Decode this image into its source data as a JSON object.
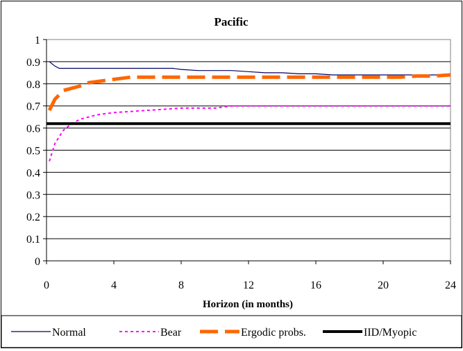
{
  "chart_data": {
    "type": "line",
    "title": "Pacific",
    "xlabel": "Horizon (in months)",
    "ylabel": "",
    "xlim": [
      0,
      24
    ],
    "ylim": [
      0,
      1
    ],
    "x_ticks": [
      "0",
      "4",
      "8",
      "12",
      "16",
      "20",
      "24"
    ],
    "y_ticks": [
      "0",
      "0.1",
      "0.2",
      "0.3",
      "0.4",
      "0.5",
      "0.6",
      "0.7",
      "0.8",
      "0.9",
      "1"
    ],
    "grid": "horizontal",
    "legend_position": "bottom",
    "series": [
      {
        "name": "Normal",
        "color": "#000066",
        "style": "solid-thin",
        "x": [
          0.17,
          0.5,
          0.75,
          1,
          1.5,
          2,
          3,
          4,
          5,
          6,
          7,
          7.5,
          8,
          9,
          10,
          11,
          12,
          13,
          14,
          15,
          16,
          17,
          18,
          19,
          20,
          21,
          22,
          23,
          24
        ],
        "y": [
          0.9,
          0.88,
          0.87,
          0.87,
          0.87,
          0.87,
          0.87,
          0.87,
          0.87,
          0.87,
          0.87,
          0.87,
          0.865,
          0.86,
          0.86,
          0.86,
          0.855,
          0.85,
          0.85,
          0.845,
          0.845,
          0.84,
          0.84,
          0.84,
          0.84,
          0.84,
          0.84,
          0.84,
          0.84
        ]
      },
      {
        "name": "Bear",
        "color": "#ff00ff",
        "style": "dotted",
        "x": [
          0.17,
          0.5,
          1,
          1.5,
          2,
          3,
          4,
          5,
          6,
          7,
          8,
          9,
          10,
          11,
          12,
          13,
          14,
          15,
          16,
          17,
          18,
          19,
          20,
          21,
          22,
          23,
          24
        ],
        "y": [
          0.45,
          0.53,
          0.59,
          0.62,
          0.64,
          0.66,
          0.67,
          0.675,
          0.68,
          0.685,
          0.69,
          0.69,
          0.69,
          0.7,
          0.7,
          0.7,
          0.7,
          0.7,
          0.7,
          0.7,
          0.7,
          0.7,
          0.7,
          0.7,
          0.7,
          0.7,
          0.7
        ]
      },
      {
        "name": "Ergodic probs.",
        "color": "#ff6600",
        "style": "dashed-thick",
        "x": [
          0.17,
          0.5,
          1,
          1.5,
          2,
          2.5,
          3,
          4,
          4.5,
          5,
          6,
          7,
          8,
          9,
          10,
          11,
          12,
          13,
          14,
          15,
          16,
          17,
          18,
          19,
          20,
          21,
          22,
          23,
          24
        ],
        "y": [
          0.68,
          0.73,
          0.77,
          0.78,
          0.79,
          0.805,
          0.81,
          0.82,
          0.825,
          0.83,
          0.83,
          0.83,
          0.83,
          0.83,
          0.83,
          0.83,
          0.83,
          0.83,
          0.83,
          0.83,
          0.83,
          0.83,
          0.83,
          0.83,
          0.83,
          0.83,
          0.835,
          0.835,
          0.84
        ]
      },
      {
        "name": "IID/Myopic",
        "color": "#000000",
        "style": "solid-thick",
        "x": [
          0,
          24
        ],
        "y": [
          0.62,
          0.62
        ]
      }
    ]
  }
}
